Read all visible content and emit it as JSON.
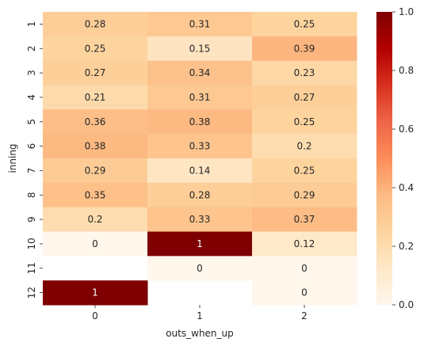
{
  "chart_data": {
    "type": "heatmap",
    "xlabel": "outs_when_up",
    "ylabel": "inning",
    "x_categories": [
      "0",
      "1",
      "2"
    ],
    "y_categories": [
      "1",
      "2",
      "3",
      "4",
      "5",
      "6",
      "7",
      "8",
      "9",
      "10",
      "11",
      "12"
    ],
    "values": [
      [
        0.28,
        0.31,
        0.25
      ],
      [
        0.25,
        0.15,
        0.39
      ],
      [
        0.27,
        0.34,
        0.23
      ],
      [
        0.21,
        0.31,
        0.27
      ],
      [
        0.36,
        0.38,
        0.25
      ],
      [
        0.38,
        0.33,
        0.2
      ],
      [
        0.29,
        0.14,
        0.25
      ],
      [
        0.35,
        0.28,
        0.29
      ],
      [
        0.2,
        0.33,
        0.37
      ],
      [
        0,
        1,
        0.12
      ],
      [
        null,
        0,
        0
      ],
      [
        1,
        null,
        0
      ]
    ],
    "value_labels": [
      [
        "0.28",
        "0.31",
        "0.25"
      ],
      [
        "0.25",
        "0.15",
        "0.39"
      ],
      [
        "0.27",
        "0.34",
        "0.23"
      ],
      [
        "0.21",
        "0.31",
        "0.27"
      ],
      [
        "0.36",
        "0.38",
        "0.25"
      ],
      [
        "0.38",
        "0.33",
        "0.2"
      ],
      [
        "0.29",
        "0.14",
        "0.25"
      ],
      [
        "0.35",
        "0.28",
        "0.29"
      ],
      [
        "0.2",
        "0.33",
        "0.37"
      ],
      [
        "0",
        "1",
        "0.12"
      ],
      [
        "",
        "0",
        "0"
      ],
      [
        "1",
        "",
        "0"
      ]
    ],
    "colorbar": {
      "min": 0,
      "max": 1,
      "ticks": [
        "0.0",
        "0.2",
        "0.4",
        "0.6",
        "0.8",
        "1.0"
      ],
      "colormap": "OrRd"
    },
    "grid": false,
    "legend": "colorbar-right"
  }
}
